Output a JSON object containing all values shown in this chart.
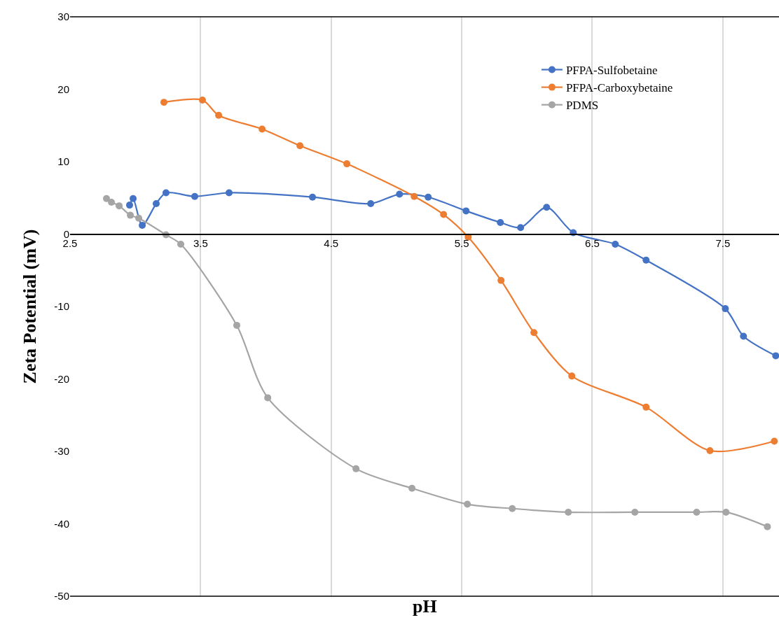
{
  "chart_data": {
    "type": "line",
    "xlabel": "pH",
    "ylabel": "Zeta Potential (mV)",
    "xlim": [
      2.5,
      7.93
    ],
    "xticks": [
      2.5,
      3.5,
      4.5,
      5.5,
      6.5,
      7.5
    ],
    "ylim": [
      -50,
      30
    ],
    "yticks": [
      -50,
      -40,
      -30,
      -20,
      -10,
      0,
      10,
      20,
      30
    ],
    "grid": "x",
    "legend": "top right",
    "marker": "circle",
    "line_style": "solid",
    "series": [
      {
        "name": "PFPA-Sulfobetaine",
        "color": "#4472c4",
        "x": [
          2.956,
          2.983,
          3.053,
          3.16,
          3.235,
          3.455,
          3.718,
          4.357,
          4.803,
          5.023,
          5.243,
          5.533,
          5.796,
          5.951,
          6.15,
          6.354,
          6.676,
          6.912,
          7.519,
          7.658,
          7.905
        ],
        "values": [
          4.0,
          4.9,
          1.2,
          4.2,
          5.7,
          5.2,
          5.7,
          5.1,
          4.2,
          5.5,
          5.1,
          3.2,
          1.6,
          0.9,
          3.7,
          0.2,
          -1.4,
          -3.6,
          -10.3,
          -14.1,
          -16.8
        ]
      },
      {
        "name": "PFPA-Carboxybetaine",
        "color": "#ed7d31",
        "x": [
          3.219,
          3.514,
          3.638,
          3.971,
          4.261,
          4.62,
          5.136,
          5.361,
          5.549,
          5.801,
          6.053,
          6.343,
          6.912,
          7.401,
          7.894
        ],
        "values": [
          18.2,
          18.5,
          16.4,
          14.5,
          12.2,
          9.7,
          5.2,
          2.7,
          -0.4,
          -6.4,
          -13.6,
          -19.6,
          -23.9,
          -29.9,
          -28.6
        ]
      },
      {
        "name": "PDMS",
        "color": "#a5a5a5",
        "x": [
          2.779,
          2.817,
          2.876,
          2.962,
          3.026,
          3.235,
          3.348,
          3.777,
          4.014,
          4.69,
          5.119,
          5.543,
          5.887,
          6.316,
          6.826,
          7.299,
          7.524,
          7.841
        ],
        "values": [
          4.9,
          4.4,
          3.9,
          2.6,
          2.2,
          -0.1,
          -1.4,
          -12.6,
          -22.6,
          -32.4,
          -35.1,
          -37.3,
          -37.9,
          -38.4,
          -38.4,
          -38.4,
          -38.4,
          -40.4
        ]
      }
    ]
  }
}
